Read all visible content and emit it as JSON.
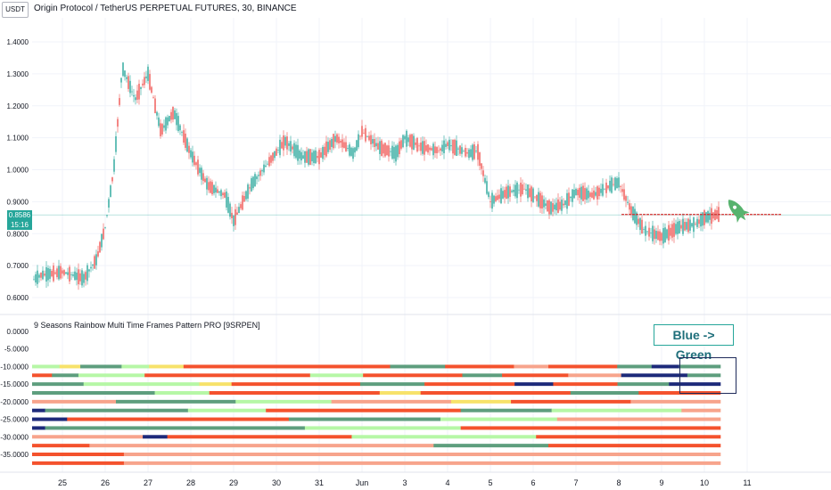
{
  "header": {
    "currency": "USDT",
    "title": "Origin Protocol / TetherUS PERPETUAL FUTURES, 30, BINANCE"
  },
  "price_axis": {
    "ticks": [
      "1.4000",
      "1.3000",
      "1.2000",
      "1.1000",
      "1.0000",
      "0.9000",
      "0.8000",
      "0.7000",
      "0.6000"
    ],
    "last_price": "0.8586",
    "countdown": "15:16"
  },
  "indicator": {
    "title": "9 Seasons Rainbow Multi Time Frames Pattern PRO [9SRPEN]",
    "ticks": [
      "0.0000",
      "-5.0000",
      "-10.0000",
      "-15.0000",
      "-20.0000",
      "-25.0000",
      "-30.0000",
      "-35.0000"
    ]
  },
  "time_axis": {
    "ticks": [
      "25",
      "26",
      "27",
      "28",
      "29",
      "30",
      "31",
      "Jun",
      "3",
      "4",
      "5",
      "6",
      "7",
      "8",
      "9",
      "10",
      "11"
    ]
  },
  "annotation": {
    "text": "Blue -> Green",
    "rocket_icon": "rocket-icon"
  },
  "colors": {
    "up": "#26a69a",
    "down": "#ef5350",
    "red_band": "#f4522d",
    "salmon_band": "#f7a48c",
    "green_band": "#5e9e7e",
    "lightgreen_band": "#b6f7a6",
    "navy_band": "#1d2a7a",
    "yellow_band": "#f7e26a",
    "rocket": "#57b36e",
    "resistance": "#d32f2f"
  },
  "chart_data": {
    "type": "line",
    "title": "Origin Protocol / TetherUS PERPETUAL FUTURES, 30, BINANCE",
    "x": [
      "24",
      "24.5",
      "25",
      "25.5",
      "25.8",
      "26",
      "26.2",
      "26.4",
      "26.7",
      "27",
      "27.3",
      "27.6",
      "28",
      "28.4",
      "28.8",
      "29",
      "29.4",
      "29.8",
      "30.2",
      "30.6",
      "31",
      "31.4",
      "31.8",
      "1",
      "1.4",
      "1.8",
      "2",
      "2.4",
      "2.8",
      "3",
      "3.5",
      "3.7",
      "4",
      "4.4",
      "4.8",
      "5",
      "5.4",
      "5.7",
      "6",
      "6.4",
      "6.8",
      "7",
      "7.3",
      "7.6",
      "8",
      "8.4",
      "8.8",
      "9",
      "9.3"
    ],
    "values": [
      0.63,
      0.67,
      0.68,
      0.66,
      0.72,
      0.82,
      1.0,
      1.32,
      1.22,
      1.3,
      1.12,
      1.18,
      1.05,
      0.95,
      0.92,
      0.84,
      0.95,
      1.02,
      1.09,
      1.04,
      1.04,
      1.1,
      1.05,
      1.12,
      1.07,
      1.05,
      1.1,
      1.07,
      1.06,
      1.08,
      1.05,
      1.06,
      0.9,
      0.93,
      0.94,
      0.92,
      0.88,
      0.89,
      0.93,
      0.92,
      0.95,
      0.96,
      0.87,
      0.81,
      0.79,
      0.82,
      0.83,
      0.85,
      0.86
    ],
    "ylim": [
      0.6,
      1.45
    ],
    "xlabel": "",
    "ylabel": "",
    "resistance_level": 0.86,
    "indicator_ylim": [
      -38,
      0
    ],
    "indicator_rows": [
      {
        "y": -10,
        "segments": [
          [
            "#b6f7a6",
            4
          ],
          [
            "#f7e26a",
            3
          ],
          [
            "#5e9e7e",
            6
          ],
          [
            "#b6f7a6",
            4
          ],
          [
            "#f7e26a",
            5
          ],
          [
            "#f4522d",
            30
          ],
          [
            "#5e9e7e",
            8
          ],
          [
            "#f4522d",
            10
          ],
          [
            "#f7a48c",
            5
          ],
          [
            "#f4522d",
            10
          ],
          [
            "#5e9e7e",
            5
          ],
          [
            "#1d2a7a",
            4
          ],
          [
            "#5e9e7e",
            6
          ]
        ]
      },
      {
        "y": -12.5,
        "segments": [
          [
            "#f4522d",
            3
          ],
          [
            "#5e9e7e",
            4
          ],
          [
            "#b6f7a6",
            10
          ],
          [
            "#f4522d",
            25
          ],
          [
            "#b6f7a6",
            8
          ],
          [
            "#f4522d",
            15
          ],
          [
            "#5e9e7e",
            6
          ],
          [
            "#f4522d",
            10
          ],
          [
            "#f7a48c",
            8
          ],
          [
            "#1d2a7a",
            10
          ],
          [
            "#5e9e7e",
            5
          ]
        ]
      },
      {
        "y": -15,
        "segments": [
          [
            "#5e9e7e",
            8
          ],
          [
            "#b6f7a6",
            18
          ],
          [
            "#f7e26a",
            5
          ],
          [
            "#f4522d",
            20
          ],
          [
            "#5e9e7e",
            10
          ],
          [
            "#f4522d",
            14
          ],
          [
            "#1d2a7a",
            6
          ],
          [
            "#f4522d",
            10
          ],
          [
            "#5e9e7e",
            8
          ],
          [
            "#1d2a7a",
            8
          ]
        ]
      },
      {
        "y": -17.5,
        "segments": [
          [
            "#5e9e7e",
            18
          ],
          [
            "#b6f7a6",
            8
          ],
          [
            "#f4522d",
            25
          ],
          [
            "#f7e26a",
            6
          ],
          [
            "#f4522d",
            22
          ],
          [
            "#5e9e7e",
            10
          ],
          [
            "#f4522d",
            12
          ]
        ]
      },
      {
        "y": -20,
        "segments": [
          [
            "#f7a48c",
            14
          ],
          [
            "#5e9e7e",
            20
          ],
          [
            "#b6f7a6",
            16
          ],
          [
            "#f7a48c",
            20
          ],
          [
            "#f7e26a",
            10
          ],
          [
            "#f4522d",
            20
          ],
          [
            "#f7a48c",
            15
          ]
        ]
      },
      {
        "y": -22.5,
        "segments": [
          [
            "#1d2a7a",
            2
          ],
          [
            "#5e9e7e",
            22
          ],
          [
            "#b6f7a6",
            12
          ],
          [
            "#f4522d",
            30
          ],
          [
            "#5e9e7e",
            14
          ],
          [
            "#b6f7a6",
            20
          ],
          [
            "#f7a48c",
            6
          ]
        ]
      },
      {
        "y": -25,
        "segments": [
          [
            "#1d2a7a",
            6
          ],
          [
            "#f4522d",
            38
          ],
          [
            "#5e9e7e",
            26
          ],
          [
            "#b6f7a6",
            20
          ],
          [
            "#f7a48c",
            28
          ]
        ]
      },
      {
        "y": -27.5,
        "segments": [
          [
            "#1d2a7a",
            2
          ],
          [
            "#5e9e7e",
            40
          ],
          [
            "#b6f7a6",
            24
          ],
          [
            "#f4522d",
            40
          ]
        ]
      },
      {
        "y": -30,
        "segments": [
          [
            "#f7a48c",
            18
          ],
          [
            "#1d2a7a",
            4
          ],
          [
            "#f4522d",
            30
          ],
          [
            "#b6f7a6",
            30
          ],
          [
            "#f4522d",
            30
          ]
        ]
      },
      {
        "y": -32.5,
        "segments": [
          [
            "#f4522d",
            10
          ],
          [
            "#f7a48c",
            60
          ],
          [
            "#5e9e7e",
            20
          ],
          [
            "#f4522d",
            30
          ]
        ]
      },
      {
        "y": -35,
        "segments": [
          [
            "#f4522d",
            16
          ],
          [
            "#f7a48c",
            104
          ]
        ]
      },
      {
        "y": -37.5,
        "segments": [
          [
            "#f4522d",
            16
          ],
          [
            "#f7a48c",
            104
          ]
        ]
      }
    ]
  }
}
